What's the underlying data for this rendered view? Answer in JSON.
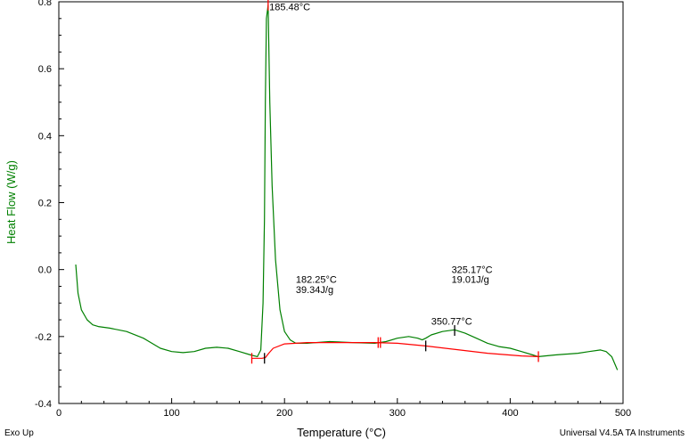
{
  "chart_data": {
    "type": "line",
    "xlabel": "Temperature (°C)",
    "ylabel": "Heat Flow (W/g)",
    "xlim": [
      0,
      500
    ],
    "ylim": [
      -0.4,
      0.8
    ],
    "x_ticks": [
      0,
      100,
      200,
      300,
      400,
      500
    ],
    "y_ticks": [
      -0.4,
      -0.2,
      0.0,
      0.2,
      0.4,
      0.6,
      0.8
    ],
    "x_tick_labels": [
      "0",
      "100",
      "200",
      "300",
      "400",
      "500"
    ],
    "y_tick_labels": [
      "-0.4",
      "-0.2",
      "0.0",
      "0.2",
      "0.4",
      "0.6",
      "0.8"
    ],
    "grid": false,
    "series": [
      {
        "color": "#008000",
        "x": [
          15,
          17,
          20,
          25,
          30,
          35,
          45,
          60,
          75,
          90,
          100,
          110,
          120,
          130,
          140,
          150,
          160,
          170,
          176,
          179,
          181,
          182.25,
          183,
          184,
          185.48,
          187,
          189,
          192,
          196,
          200,
          205,
          210,
          220,
          240,
          260,
          280,
          290,
          300,
          310,
          318,
          322,
          325.17,
          330,
          340,
          350.77,
          360,
          370,
          380,
          390,
          400,
          410,
          420,
          425,
          440,
          460,
          470,
          480,
          485,
          490,
          495
        ],
        "y": [
          0.015,
          -0.07,
          -0.12,
          -0.15,
          -0.165,
          -0.17,
          -0.175,
          -0.185,
          -0.205,
          -0.235,
          -0.245,
          -0.248,
          -0.245,
          -0.235,
          -0.232,
          -0.235,
          -0.245,
          -0.255,
          -0.26,
          -0.24,
          -0.1,
          0.15,
          0.5,
          0.75,
          0.79,
          0.5,
          0.25,
          0.03,
          -0.12,
          -0.185,
          -0.21,
          -0.22,
          -0.22,
          -0.215,
          -0.218,
          -0.22,
          -0.215,
          -0.205,
          -0.2,
          -0.205,
          -0.21,
          -0.205,
          -0.195,
          -0.185,
          -0.18,
          -0.19,
          -0.205,
          -0.22,
          -0.23,
          -0.235,
          -0.245,
          -0.255,
          -0.26,
          -0.255,
          -0.25,
          -0.245,
          -0.24,
          -0.245,
          -0.26,
          -0.3
        ]
      },
      {
        "color": "#ff0000",
        "x": [
          171,
          175,
          180,
          183,
          186,
          190,
          200,
          220,
          250,
          280,
          300,
          325,
          350,
          380,
          410,
          425
        ],
        "y": [
          -0.265,
          -0.265,
          -0.265,
          -0.263,
          -0.25,
          -0.235,
          -0.222,
          -0.218,
          -0.218,
          -0.218,
          -0.22,
          -0.228,
          -0.238,
          -0.25,
          -0.258,
          -0.26
        ]
      }
    ],
    "annotations": [
      {
        "text": "185.48°C",
        "x": 186.5,
        "y": 0.775
      },
      {
        "text": "182.25°C",
        "x": 210,
        "y": -0.04
      },
      {
        "text": "39.34J/g",
        "x": 210,
        "y": -0.07
      },
      {
        "text": "325.17°C",
        "x": 348,
        "y": -0.01
      },
      {
        "text": "19.01J/g",
        "x": 348,
        "y": -0.04
      },
      {
        "text": "350.77°C",
        "x": 330,
        "y": -0.165
      }
    ],
    "markers": [
      {
        "x": 171,
        "y": -0.265,
        "color": "#ff0000"
      },
      {
        "x": 182.25,
        "y": -0.265,
        "color": "#000000"
      },
      {
        "x": 185.48,
        "y": 0.79,
        "color": "#ff0000"
      },
      {
        "x": 283,
        "y": -0.218,
        "color": "#ff0000"
      },
      {
        "x": 285,
        "y": -0.218,
        "color": "#ff0000"
      },
      {
        "x": 325.17,
        "y": -0.228,
        "color": "#000000"
      },
      {
        "x": 350.77,
        "y": -0.182,
        "color": "#000000"
      },
      {
        "x": 425,
        "y": -0.26,
        "color": "#ff0000"
      }
    ],
    "footer_left": "Exo Up",
    "footer_right": "Universal V4.5A TA Instruments"
  }
}
